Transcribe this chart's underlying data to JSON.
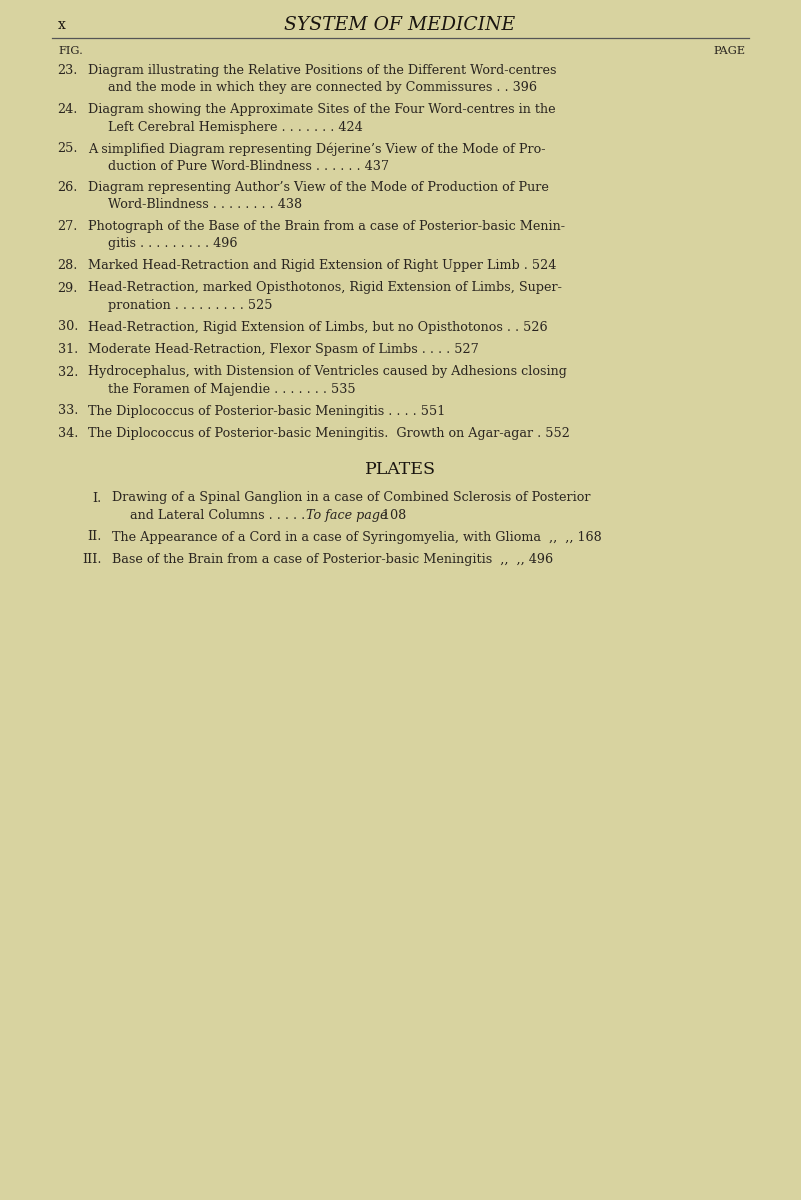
{
  "background_color": "#d8d3a0",
  "text_color": "#2a2520",
  "header_color": "#1a1510",
  "title": "SYSTEM OF MEDICINE",
  "page_num": "x",
  "fig_label": "FIG.",
  "page_label": "PAGE",
  "main_font_size": 9.2,
  "title_font_size": 13.5,
  "small_font_size": 8.5,
  "entries": [
    {
      "num": "23.",
      "line1": "Diagram illustrating the Relative Positions of the Different Word-centres",
      "line2": "and the mode in which they are connected by Commissures . . 396",
      "two_lines": true
    },
    {
      "num": "24.",
      "line1": "Diagram showing the Approximate Sites of the Four Word-centres in the",
      "line2": "Left Cerebral Hemisphere . . . . . . . 424",
      "two_lines": true
    },
    {
      "num": "25.",
      "line1": "A simplified Diagram representing Déjerine’s View of the Mode of Pro-",
      "line2": "duction of Pure Word-Blindness . . . . . . 437",
      "two_lines": true
    },
    {
      "num": "26.",
      "line1": "Diagram representing Author’s View of the Mode of Production of Pure",
      "line2": "Word-Blindness . . . . . . . . 438",
      "two_lines": true
    },
    {
      "num": "27.",
      "line1": "Photograph of the Base of the Brain from a case of Posterior-basic Menin-",
      "line2": "gitis . . . . . . . . . 496",
      "two_lines": true
    },
    {
      "num": "28.",
      "line1": "Marked Head-Retraction and Rigid Extension of Right Upper Limb . 524",
      "line2": null,
      "two_lines": false
    },
    {
      "num": "29.",
      "line1": "Head-Retraction, marked Opisthotonos, Rigid Extension of Limbs, Super-",
      "line2": "pronation . . . . . . . . . 525",
      "two_lines": true
    },
    {
      "num": "30.",
      "line1": "Head-Retraction, Rigid Extension of Limbs, but no Opisthotonos . . 526",
      "line2": null,
      "two_lines": false
    },
    {
      "num": "31.",
      "line1": "Moderate Head-Retraction, Flexor Spasm of Limbs . . . . 527",
      "line2": null,
      "two_lines": false
    },
    {
      "num": "32.",
      "line1": "Hydrocephalus, with Distension of Ventricles caused by Adhesions closing",
      "line2": "the Foramen of Majendie . . . . . . . 535",
      "two_lines": true
    },
    {
      "num": "33.",
      "line1": "The Diplococcus of Posterior-basic Meningitis . . . . 551",
      "line2": null,
      "two_lines": false
    },
    {
      "num": "34.",
      "line1": "The Diplococcus of Posterior-basic Meningitis.  Growth on Agar-agar . 552",
      "line2": null,
      "two_lines": false
    }
  ],
  "plates_title": "PLATES",
  "plates_entries": [
    {
      "num": "I.",
      "line1": "Drawing of a Spinal Ganglion in a case of Combined Sclerosis of Posterior",
      "line2_normal": "and Lateral Columns . . . . .  ",
      "line2_italic": "To face page",
      "line2_page": " 108",
      "two_lines": true
    },
    {
      "num": "II.",
      "line1": "The Appearance of a Cord in a case of Syringomyelia, with Glioma  ,,  ,, 168",
      "line2": null,
      "two_lines": false
    },
    {
      "num": "III.",
      "line1": "Base of the Brain from a case of Posterior-basic Meningitis  ,,  ,, 496",
      "line2": null,
      "two_lines": false
    }
  ]
}
